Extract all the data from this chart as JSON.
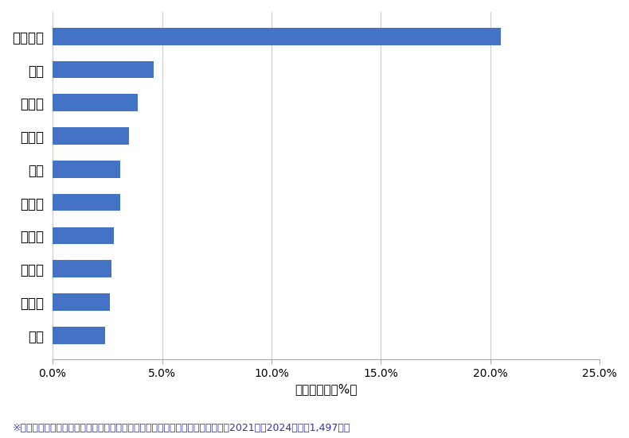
{
  "categories": [
    "羽田空港",
    "蒲田",
    "大森西",
    "西蒲田",
    "池上",
    "大森北",
    "上池台",
    "下丸子",
    "西糀谷",
    "羽田"
  ],
  "values": [
    20.5,
    4.6,
    3.9,
    3.5,
    3.1,
    3.1,
    2.8,
    2.7,
    2.6,
    2.4
  ],
  "bar_color": "#4472C4",
  "xlabel": "件数の割合（%）",
  "xlim": [
    0,
    25.0
  ],
  "xticks": [
    0,
    5.0,
    10.0,
    15.0,
    20.0,
    25.0
  ],
  "xtick_labels": [
    "0.0%",
    "5.0%",
    "10.0%",
    "15.0%",
    "20.0%",
    "25.0%"
  ],
  "footnote": "※弊社受付の案件を対象に、受付時に市区町村の回答があったものを集計（期間2021年〜2024年、計1,497件）",
  "background_color": "#ffffff",
  "grid_color": "#cccccc",
  "bar_height": 0.52,
  "xlabel_fontsize": 11,
  "tick_fontsize": 10,
  "footnote_fontsize": 9,
  "label_fontsize": 12
}
